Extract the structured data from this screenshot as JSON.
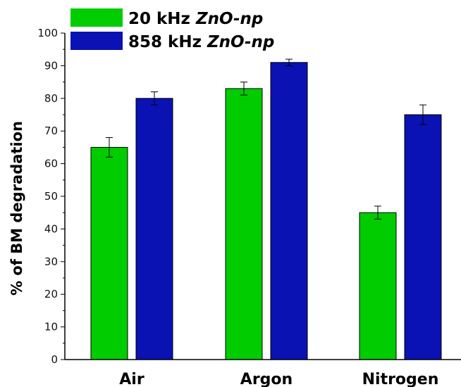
{
  "chart_data": {
    "type": "bar",
    "title": "",
    "xlabel": "",
    "ylabel": "% of BM degradation",
    "ylim": [
      0,
      100
    ],
    "ytick_step": 10,
    "yticks": [
      "0",
      "10",
      "20",
      "30",
      "40",
      "50",
      "60",
      "70",
      "80",
      "90",
      "100"
    ],
    "categories": [
      "Air",
      "Argon",
      "Nitrogen"
    ],
    "legend_position": "top-left",
    "grid": false,
    "series": [
      {
        "name_prefix": "20 kHz ",
        "name_italic": "ZnO-np",
        "color": "#00cc00",
        "values": [
          65,
          83,
          45
        ],
        "errors": [
          3,
          2,
          2
        ]
      },
      {
        "name_prefix": "858 kHz ",
        "name_italic": "ZnO-np",
        "color": "#0a12b4",
        "values": [
          80,
          91,
          75
        ],
        "errors": [
          2,
          1,
          3
        ]
      }
    ]
  }
}
